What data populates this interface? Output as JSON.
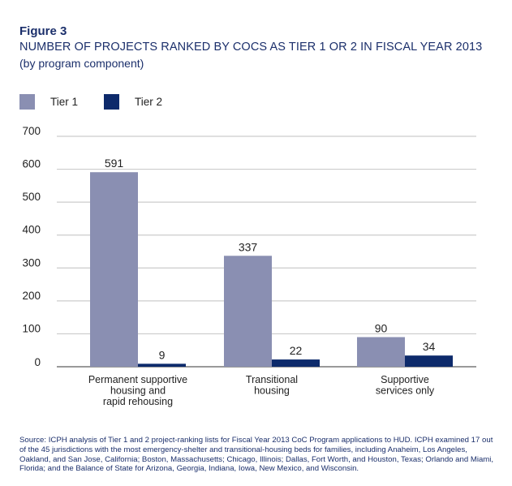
{
  "figure_label": "Figure 3",
  "title": "NUMBER OF PROJECTS RANKED BY COCS AS TIER 1 OR 2 IN FISCAL YEAR 2013",
  "subtitle": "(by program component)",
  "source": "Source: ICPH analysis of Tier 1 and 2 project-ranking lists for Fiscal Year 2013 CoC Program applications to HUD. ICPH examined 17 out of the 45 jurisdictions with the most emergency-shelter and transitional-housing beds for families, including Anaheim, Los Angeles, Oakland, and San Jose, California; Boston, Massachusetts; Chicago, Illinois; Dallas, Fort Worth, and Houston, Texas; Orlando and Miami, Florida; and the Balance of State for Arizona, Georgia, Indiana, Iowa, New Mexico, and Wisconsin.",
  "colors": {
    "tier1": "#8a8fb2",
    "tier2": "#0d2a6b",
    "grid": "#cccccc",
    "axis": "#999999",
    "text": "#222222"
  },
  "chart_data": {
    "type": "bar",
    "title": "NUMBER OF PROJECTS RANKED BY COCS AS TIER 1 OR 2 IN FISCAL YEAR 2013",
    "subtitle": "(by program component)",
    "xlabel": "",
    "ylabel": "",
    "ylim": [
      0,
      700
    ],
    "yticks": [
      0,
      100,
      200,
      300,
      400,
      500,
      600,
      700
    ],
    "grid": true,
    "legend_position": "top-left",
    "categories": [
      [
        "Permanent supportive",
        "housing and",
        "rapid rehousing"
      ],
      [
        "Transitional",
        "housing"
      ],
      [
        "Supportive",
        "services only"
      ]
    ],
    "series": [
      {
        "name": "Tier 1",
        "color": "#8a8fb2",
        "values": [
          591,
          337,
          90
        ]
      },
      {
        "name": "Tier 2",
        "color": "#0d2a6b",
        "values": [
          9,
          22,
          34
        ]
      }
    ]
  }
}
